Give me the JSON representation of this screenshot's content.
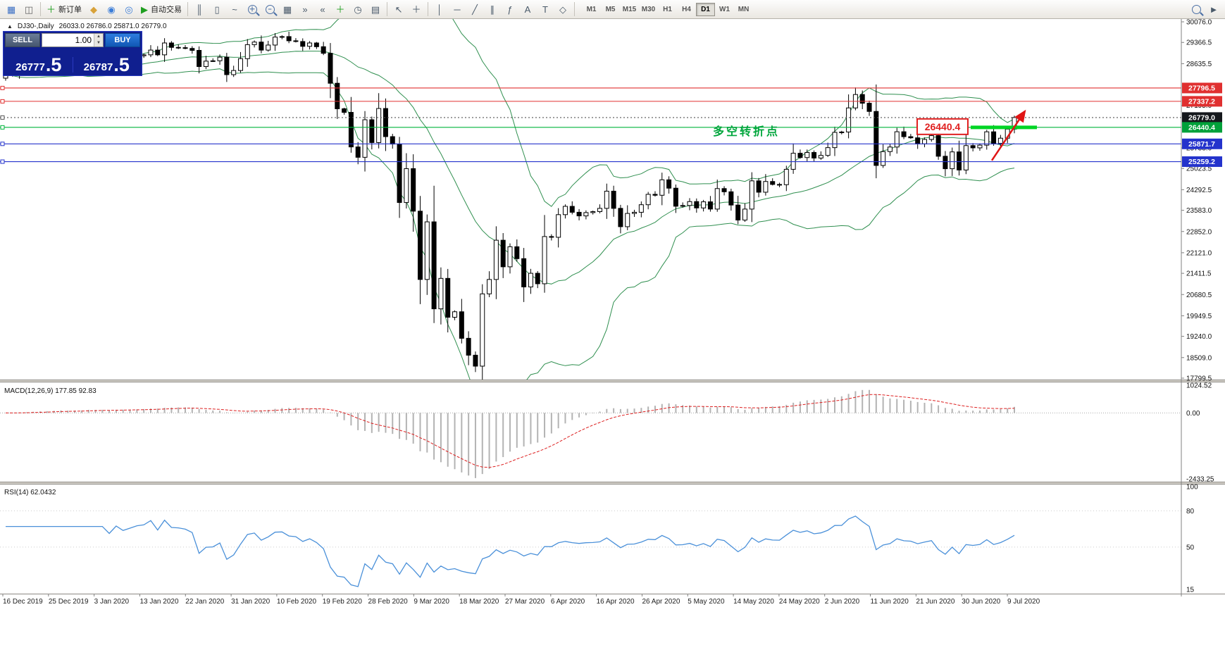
{
  "toolbar": {
    "left_icons": [
      {
        "name": "new-chart-icon",
        "glyph": "▦",
        "color": "#3b6fc4"
      },
      {
        "name": "chart-windows-icon",
        "glyph": "◫",
        "color": "#666666"
      }
    ],
    "new_order": {
      "label": "新订单",
      "icon_glyph": "＋"
    },
    "round_icons": [
      {
        "name": "market-icon",
        "glyph": "◆",
        "color": "#d8a23a"
      },
      {
        "name": "community-icon",
        "glyph": "◉",
        "color": "#3b7dd8"
      },
      {
        "name": "news-icon",
        "glyph": "◎",
        "color": "#3b7dd8"
      }
    ],
    "autotrading": {
      "label": "自动交易",
      "icon_glyph": "▶"
    },
    "chart_type_icons": [
      {
        "name": "bar-chart-icon",
        "glyph": "║"
      },
      {
        "name": "candle-chart-icon",
        "glyph": "▯"
      },
      {
        "name": "line-chart-icon",
        "glyph": "~"
      }
    ],
    "zoom_icons": [
      {
        "name": "zoom-in-icon",
        "glyph": "＋"
      },
      {
        "name": "zoom-out-icon",
        "glyph": "−"
      }
    ],
    "window_icons": [
      {
        "name": "tile-windows-icon",
        "glyph": "▦"
      }
    ],
    "scroll_icons": [
      {
        "name": "auto-scroll-icon",
        "glyph": "»"
      },
      {
        "name": "chart-shift-icon",
        "glyph": "«"
      }
    ],
    "insert_icons": [
      {
        "name": "indicators-icon",
        "glyph": "＋",
        "color": "#1f9e1f"
      },
      {
        "name": "periods-icon",
        "glyph": "◷"
      },
      {
        "name": "templates-icon",
        "glyph": "▤"
      }
    ],
    "cursor_icons": [
      {
        "name": "cursor-icon",
        "glyph": "↖"
      },
      {
        "name": "crosshair-icon",
        "glyph": "＋"
      }
    ],
    "draw_icons": [
      {
        "name": "vertical-line-icon",
        "glyph": "│"
      },
      {
        "name": "horizontal-line-icon",
        "glyph": "─"
      },
      {
        "name": "trendline-icon",
        "glyph": "╱"
      },
      {
        "name": "channel-icon",
        "glyph": "∥"
      },
      {
        "name": "fibonacci-icon",
        "glyph": "ƒ"
      },
      {
        "name": "text-icon",
        "glyph": "A"
      },
      {
        "name": "label-icon",
        "glyph": "T"
      },
      {
        "name": "shapes-icon",
        "glyph": "◇"
      }
    ],
    "timeframes": [
      "M1",
      "M5",
      "M15",
      "M30",
      "H1",
      "H4",
      "D1",
      "W1",
      "MN"
    ],
    "active_timeframe": "D1",
    "right_icons": [
      {
        "name": "search-icon",
        "glyph": ""
      },
      {
        "name": "pointer-tool-icon",
        "glyph": "►"
      }
    ]
  },
  "panel": {
    "sell_label": "SELL",
    "buy_label": "BUY",
    "volume": "1.00",
    "spin_up_glyph": "▲",
    "spin_down_glyph": "▼",
    "sell_price_main": "26777",
    "sell_price_big": ".5",
    "buy_price_main": "26787",
    "buy_price_big": ".5"
  },
  "chart": {
    "collapse_glyph": "▲",
    "symbol_label": "DJ30-,Daily",
    "ohlc": "26033.0 26786.0 25871.0 26779.0",
    "price_min": 17799.5,
    "price_max": 30076.0,
    "axis_labels": [
      "30076.0",
      "29366.5",
      "28635.5",
      "27195.0",
      "25733.0",
      "25023.5",
      "24292.5",
      "23583.0",
      "22852.0",
      "22121.0",
      "21411.5",
      "20680.5",
      "19949.5",
      "19240.0",
      "18509.0",
      "17799.5"
    ],
    "price_tags": [
      {
        "value": 27796.5,
        "label": "27796.5",
        "bg": "#e03030",
        "line": "#e03030"
      },
      {
        "value": 27337.2,
        "label": "27337.2",
        "bg": "#e03030",
        "line": "#e03030"
      },
      {
        "value": 26779.0,
        "label": "26779.0",
        "bg": "#15181c",
        "line": "#555555",
        "dash": true
      },
      {
        "value": 26440.4,
        "label": "26440.4",
        "bg": "#00a13a",
        "line": "#00b43c"
      },
      {
        "value": 25871.7,
        "label": "25871.7",
        "bg": "#2433cc",
        "line": "#2433cc"
      },
      {
        "value": 25259.2,
        "label": "25259.2",
        "bg": "#2433cc",
        "line": "#2433cc"
      }
    ],
    "annotation": {
      "text": "多空转折点",
      "color": "#00a63c"
    },
    "callout": {
      "text": "26440.4",
      "color": "#e02020"
    },
    "dates": [
      "16 Dec 2019",
      "25 Dec 2019",
      "3 Jan 2020",
      "13 Jan 2020",
      "22 Jan 2020",
      "31 Jan 2020",
      "10 Feb 2020",
      "19 Feb 2020",
      "28 Feb 2020",
      "9 Mar 2020",
      "18 Mar 2020",
      "27 Mar 2020",
      "6 Apr 2020",
      "16 Apr 2020",
      "26 Apr 2020",
      "5 May 2020",
      "14 May 2020",
      "24 May 2020",
      "2 Jun 2020",
      "11 Jun 2020",
      "21 Jun 2020",
      "30 Jun 2020",
      "9 Jul 2020"
    ],
    "first_open": 28135,
    "candles_close": [
      28235,
      28267,
      28376,
      28455,
      28504,
      28551,
      28515,
      28621,
      28645,
      28462,
      28538,
      28634,
      28868,
      28634,
      28703,
      28583,
      28827,
      28745,
      28823,
      28907,
      28939,
      29103,
      28939,
      29348,
      29196,
      29186,
      29160,
      29093,
      28535,
      28722,
      28734,
      28859,
      28256,
      28399,
      28807,
      29290,
      29379,
      29102,
      29276,
      29551,
      29568,
      29423,
      29398,
      29232,
      29348,
      29219,
      28992,
      27960,
      27081,
      26957,
      25766,
      25409,
      26703,
      25917,
      27090,
      26121,
      25864,
      23851,
      25018,
      23553,
      21200,
      23185,
      20188,
      21237,
      19898,
      20087,
      19173,
      18591,
      18213,
      20704,
      21200,
      22552,
      21636,
      22327,
      21917,
      20943,
      21413,
      21052,
      22679,
      22653,
      23433,
      23719,
      23515,
      23390,
      23504,
      23537,
      23650,
      24242,
      23650,
      23018,
      23475,
      23515,
      23775,
      24133,
      24101,
      24633,
      24345,
      23723,
      23749,
      23883,
      23664,
      23875,
      23625,
      24331,
      24221,
      23764,
      23247,
      23625,
      24597,
      24206,
      24575,
      24474,
      24465,
      24995,
      25548,
      25400,
      25575,
      25383,
      25475,
      25742,
      26269,
      26281,
      27110,
      27572,
      27272,
      26989,
      25128,
      25605,
      25763,
      26289,
      26119,
      26080,
      25871,
      26024,
      26156,
      25445,
      25015,
      25595,
      24971,
      25812,
      25734,
      25827,
      26287,
      25890,
      26067,
      26380,
      26779
    ]
  },
  "macd": {
    "label": "MACD(12,26,9) 177.85 92.83",
    "axis": [
      "1024.52",
      "0.00",
      "-2433.25"
    ],
    "max": 1024.52,
    "min": -2433.25
  },
  "rsi": {
    "label": "RSI(14) 62.0432",
    "axis": [
      "100",
      "80",
      "50",
      "15"
    ]
  }
}
